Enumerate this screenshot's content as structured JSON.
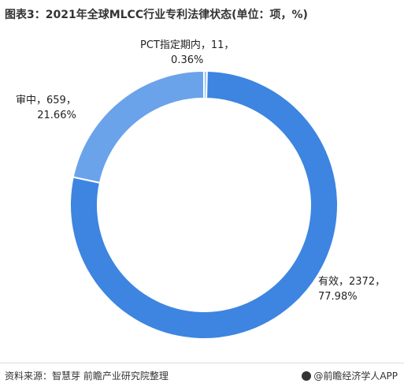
{
  "header": {
    "title": "图表3：2021年全球MLCC行业专利法律状态(单位：项，%)"
  },
  "chart_data": {
    "type": "pie",
    "title": "图表3：2021年全球MLCC行业专利法律状态(单位：项，%)",
    "donut": true,
    "slices": [
      {
        "category": "有效",
        "value": 2372,
        "percent": "77.98%",
        "label_line1": "有效，2372，",
        "label_line2": "77.98%",
        "color": "#3d85e0"
      },
      {
        "category": "审中",
        "value": 659,
        "percent": "21.66%",
        "label_line1": "审中，659，",
        "label_line2": "21.66%",
        "color": "#6aa3ea"
      },
      {
        "category": "PCT指定期内",
        "value": 11,
        "percent": "0.36%",
        "label_line1": "PCT指定期内，11，",
        "label_line2": "0.36%",
        "color": "#8fbcf0"
      }
    ],
    "legend": "none"
  },
  "footer": {
    "source": "资料来源：智慧芽 前瞻产业研究院整理",
    "brand": "@前瞻经济学人APP"
  }
}
